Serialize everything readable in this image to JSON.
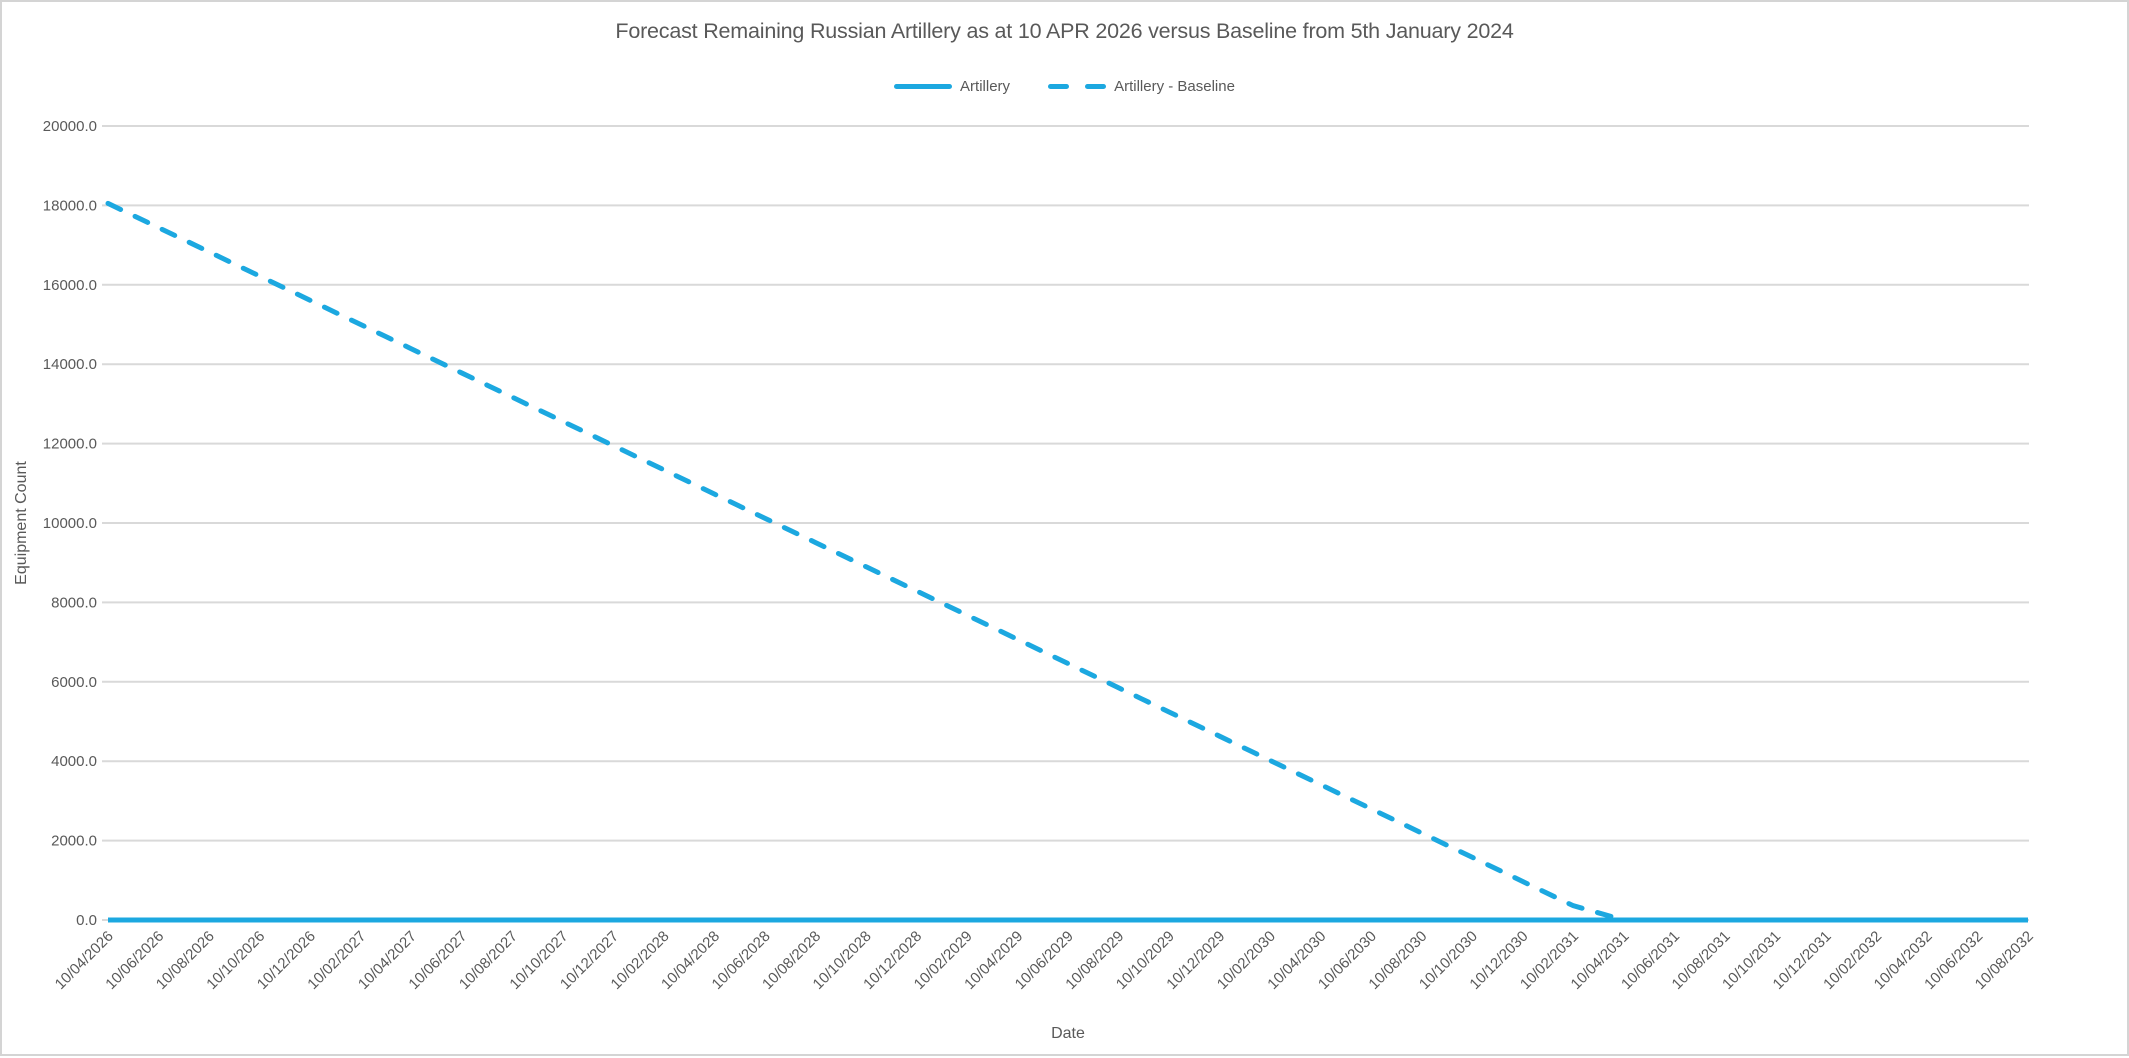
{
  "chart_data": {
    "type": "line",
    "title": "Forecast Remaining Russian Artillery as at 10 APR 2026 versus Baseline from 5th January 2024",
    "xlabel": "Date",
    "ylabel": "Equipment Count",
    "ylim": [
      0,
      20000
    ],
    "ytick_step": 2000,
    "ytick_decimals": 1,
    "grid": true,
    "legend_position": "top-center",
    "colors": {
      "accent": "#1ca8e0",
      "text": "#595959",
      "gridline": "#d9d9d9",
      "frame_border": "#d4d4d4"
    },
    "categories": [
      "10/04/2026",
      "10/06/2026",
      "10/08/2026",
      "10/10/2026",
      "10/12/2026",
      "10/02/2027",
      "10/04/2027",
      "10/06/2027",
      "10/08/2027",
      "10/10/2027",
      "10/12/2027",
      "10/02/2028",
      "10/04/2028",
      "10/06/2028",
      "10/08/2028",
      "10/10/2028",
      "10/12/2028",
      "10/02/2029",
      "10/04/2029",
      "10/06/2029",
      "10/08/2029",
      "10/10/2029",
      "10/12/2029",
      "10/02/2030",
      "10/04/2030",
      "10/06/2030",
      "10/08/2030",
      "10/10/2030",
      "10/12/2030",
      "10/02/2031",
      "10/04/2031",
      "10/06/2031",
      "10/08/2031",
      "10/10/2031",
      "10/12/2031",
      "10/02/2032",
      "10/04/2032",
      "10/06/2032",
      "10/08/2032"
    ],
    "series": [
      {
        "name": "Artillery",
        "line_style": "solid",
        "values": [
          0,
          0,
          0,
          0,
          0,
          0,
          0,
          0,
          0,
          0,
          0,
          0,
          0,
          0,
          0,
          0,
          0,
          0,
          0,
          0,
          0,
          0,
          0,
          0,
          0,
          0,
          0,
          0,
          0,
          0,
          0,
          0,
          0,
          0,
          0,
          0,
          0,
          0,
          0
        ]
      },
      {
        "name": "Artillery - Baseline",
        "line_style": "dashed",
        "values": [
          18050,
          17440,
          16830,
          16220,
          15610,
          15000,
          14390,
          13780,
          13170,
          12560,
          11950,
          11340,
          10730,
          10120,
          9510,
          8900,
          8290,
          7680,
          7070,
          6460,
          5850,
          5240,
          4630,
          4020,
          3410,
          2800,
          2190,
          1580,
          970,
          360,
          0,
          null,
          null,
          null,
          null,
          null,
          null,
          null,
          null
        ]
      }
    ]
  }
}
